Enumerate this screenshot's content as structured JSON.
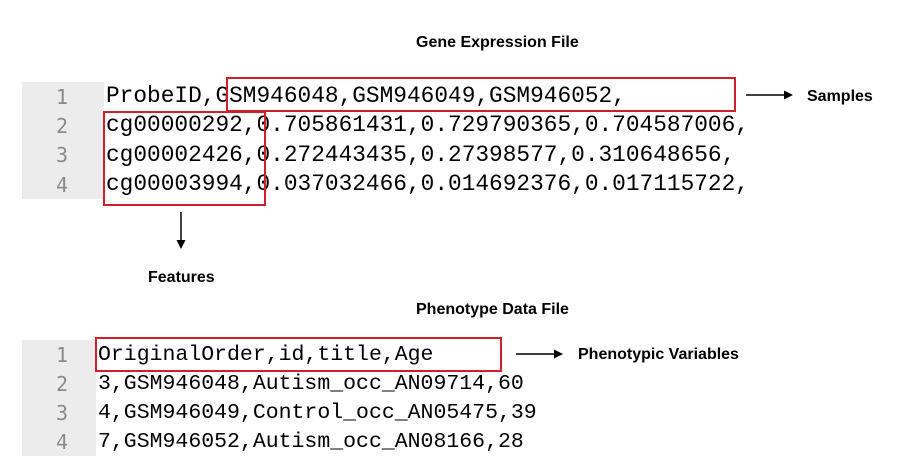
{
  "gene_file": {
    "title": "Gene Expression File",
    "rows": [
      {
        "num": "1",
        "text": "ProbeID,GSM946048,GSM946049,GSM946052,"
      },
      {
        "num": "2",
        "text": "cg00000292,0.705861431,0.729790365,0.704587006,"
      },
      {
        "num": "3",
        "text": "cg00002426,0.272443435,0.27398577,0.310648656,"
      },
      {
        "num": "4",
        "text": "cg00003994,0.037032466,0.014692376,0.017115722,"
      }
    ],
    "samples_label": "Samples",
    "features_label": "Features"
  },
  "phenotype_file": {
    "title": "Phenotype Data File",
    "rows": [
      {
        "num": "1",
        "text": "OriginalOrder,id,title,Age"
      },
      {
        "num": "2",
        "text": "3,GSM946048,Autism_occ_AN09714,60"
      },
      {
        "num": "3",
        "text": "4,GSM946049,Control_occ_AN05475,39"
      },
      {
        "num": "4",
        "text": "7,GSM946052,Autism_occ_AN08166,28"
      }
    ],
    "variables_label": "Phenotypic Variables"
  },
  "colors": {
    "highlight": "#d11f2a",
    "gutter": "#ececec"
  }
}
